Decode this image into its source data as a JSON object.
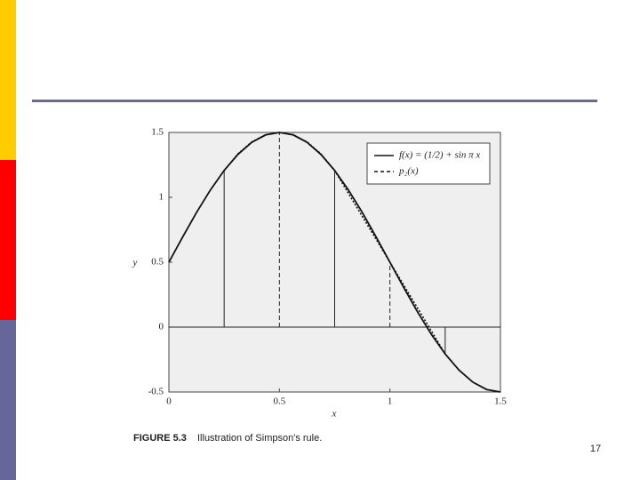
{
  "chart_data": {
    "type": "line",
    "xlabel": "x",
    "ylabel": "y",
    "xlim": [
      0,
      1.5
    ],
    "ylim": [
      -0.5,
      1.5
    ],
    "xticks": [
      0,
      0.5,
      1,
      1.5
    ],
    "yticks": [
      -0.5,
      0,
      0.5,
      1,
      1.5
    ],
    "hlines": [
      0
    ],
    "vlines": [
      {
        "x": 0.25,
        "y": 1.207,
        "dash": false
      },
      {
        "x": 0.5,
        "y": 1.5,
        "dash": true
      },
      {
        "x": 0.75,
        "y": 1.207,
        "dash": false
      },
      {
        "x": 1,
        "y": 0.5,
        "dash": true
      },
      {
        "x": 1.25,
        "y": -0.207,
        "dash": false
      }
    ],
    "legend": "upper right",
    "series": [
      {
        "name": "f(x) = (1/2) + sin π x",
        "color": "#111111",
        "style": "solid",
        "x": [
          0,
          0.0625,
          0.125,
          0.1875,
          0.25,
          0.3125,
          0.375,
          0.4375,
          0.5,
          0.5625,
          0.625,
          0.6875,
          0.75,
          0.8125,
          0.875,
          0.9375,
          1,
          1.0625,
          1.125,
          1.1875,
          1.25,
          1.3125,
          1.375,
          1.4375,
          1.5
        ],
        "values": [
          0.5,
          0.695,
          0.883,
          1.056,
          1.207,
          1.331,
          1.424,
          1.481,
          1.5,
          1.481,
          1.424,
          1.331,
          1.207,
          1.056,
          0.883,
          0.695,
          0.5,
          0.305,
          0.117,
          -0.056,
          -0.207,
          -0.331,
          -0.424,
          -0.481,
          -0.5
        ]
      },
      {
        "name": "p₂(x)",
        "color": "#111111",
        "style": "dashed",
        "x": [
          0.25,
          0.3125,
          0.375,
          0.4375,
          0.5,
          0.5625,
          0.625,
          0.6875,
          0.75,
          1,
          1.25
        ],
        "values": [
          1.207,
          1.335,
          1.427,
          1.482,
          1.5,
          1.482,
          1.427,
          1.335,
          1.207,
          0.5,
          -0.207
        ]
      }
    ]
  },
  "caption": {
    "label": "FIGURE 5.3",
    "text": "Illustration of Simpson's rule."
  },
  "page_number": "17"
}
